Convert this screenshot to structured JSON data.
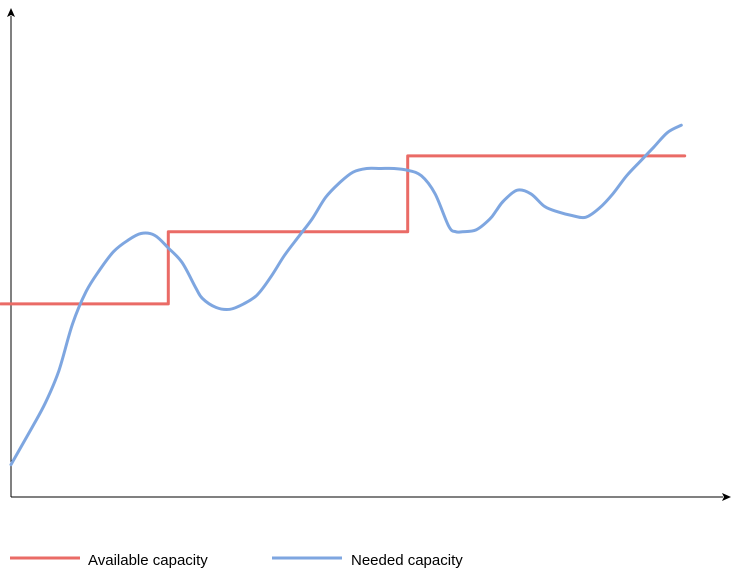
{
  "chart_data": {
    "type": "line",
    "title": "",
    "xlabel": "",
    "ylabel": "",
    "xlim": [
      0,
      100
    ],
    "ylim": [
      0,
      100
    ],
    "grid": false,
    "legend_position": "bottom",
    "series": [
      {
        "name": "Available capacity",
        "color": "#ea6b66",
        "style": "step",
        "x": [
          -1.5,
          23,
          23,
          58,
          58,
          98.5
        ],
        "y": [
          48.5,
          48.5,
          68.5,
          68.5,
          89.5,
          89.5
        ]
      },
      {
        "name": "Needed capacity",
        "color": "#7ea6e0",
        "style": "smooth",
        "x": [
          0,
          3,
          5,
          7,
          9,
          11,
          13,
          15,
          17,
          19,
          21,
          23,
          25,
          27,
          28,
          30,
          32,
          34,
          36,
          38,
          40,
          42,
          44,
          46,
          48,
          50,
          52,
          54,
          56,
          58,
          60,
          62,
          64,
          65,
          66,
          68,
          70,
          71,
          72,
          74,
          76,
          78,
          80,
          82,
          84,
          86,
          88,
          90,
          92,
          94,
          96,
          98
        ],
        "y": [
          4,
          14,
          21,
          30,
          43,
          52,
          58,
          63,
          66,
          68,
          67.5,
          64,
          60,
          53,
          50,
          47.5,
          47,
          48.5,
          51,
          56,
          62,
          67,
          72,
          78,
          82,
          85,
          86,
          86,
          86,
          85.5,
          84,
          79,
          70,
          68.5,
          68.5,
          69,
          72,
          74.5,
          77,
          80,
          79,
          75.5,
          74,
          73,
          72.5,
          75,
          79,
          84,
          88,
          92,
          96,
          98
        ]
      }
    ]
  }
}
